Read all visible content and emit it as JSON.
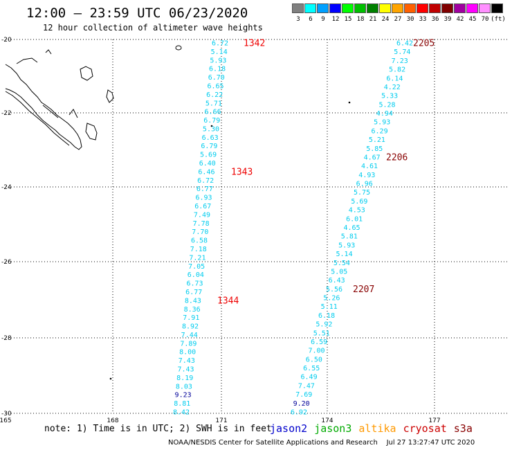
{
  "header": {
    "title": "12:00 – 23:59 UTC 06/23/2020",
    "subtitle": "12 hour collection of altimeter wave heights"
  },
  "legend": {
    "unit": "(ft)",
    "bins": [
      {
        "label": "3",
        "color": "#808080"
      },
      {
        "label": "6",
        "color": "#00ffff"
      },
      {
        "label": "9",
        "color": "#00a0ff"
      },
      {
        "label": "12",
        "color": "#0000ff"
      },
      {
        "label": "15",
        "color": "#00ff00"
      },
      {
        "label": "18",
        "color": "#00c000"
      },
      {
        "label": "21",
        "color": "#008000"
      },
      {
        "label": "24",
        "color": "#ffff00"
      },
      {
        "label": "27",
        "color": "#ffa500"
      },
      {
        "label": "30",
        "color": "#ff6000"
      },
      {
        "label": "33",
        "color": "#ff0000"
      },
      {
        "label": "36",
        "color": "#c00000"
      },
      {
        "label": "39",
        "color": "#800000"
      },
      {
        "label": "42",
        "color": "#a000a0"
      },
      {
        "label": "45",
        "color": "#ff00ff"
      },
      {
        "label": "70",
        "color": "#ff90ff"
      },
      {
        "label": "",
        "color": "#000000"
      }
    ]
  },
  "map": {
    "lat_labels": [
      "-20",
      "-22",
      "-24",
      "-26",
      "-28",
      "-30"
    ],
    "lon_labels": [
      "165",
      "168",
      "171",
      "174",
      "177"
    ],
    "colors": {
      "cyan": "#00ccee",
      "dark_blue": "#000099",
      "red_pass": "#ee0000",
      "dark_red_pass": "#880000"
    }
  },
  "tracks": [
    {
      "name": "west",
      "values": [
        "6.72",
        "5.14",
        "5.93",
        "6.18",
        "6.70",
        "6.65",
        "6.22",
        "5.71",
        "6.66",
        "6.79",
        "5.30",
        "6.63",
        "6.79",
        "5.69",
        "6.40",
        "6.46",
        "6.72",
        "6.77",
        "6.93",
        "6.67",
        "7.49",
        "7.78",
        "7.70",
        "6.58",
        "7.18",
        "7.21",
        "7.05",
        "6.04",
        "6.73",
        "6.77",
        "8.43",
        "8.36",
        "7.91",
        "8.92",
        "7.44",
        "7.89",
        "8.00",
        "7.43",
        "7.43",
        "8.19",
        "8.03",
        "9.23",
        "8.81",
        "8.42"
      ],
      "dark": [
        41
      ],
      "passes": [
        {
          "label": "1342",
          "index": 0
        },
        {
          "label": "1343",
          "index": 15
        },
        {
          "label": "1344",
          "index": 30
        }
      ]
    },
    {
      "name": "east",
      "values": [
        "6.42",
        "5.74",
        "7.23",
        "5.82",
        "6.14",
        "4.22",
        "5.33",
        "5.28",
        "4.94",
        "5.93",
        "6.29",
        "5.21",
        "5.85",
        "4.67",
        "4.61",
        "4.93",
        "6.96",
        "5.75",
        "5.69",
        "4.53",
        "6.01",
        "4.65",
        "5.81",
        "5.93",
        "5.14",
        "5.54",
        "5.05",
        "6.43",
        "5.56",
        "5.26",
        "5.11",
        "6.18",
        "5.92",
        "5.51",
        "6.59",
        "7.00",
        "6.50",
        "6.55",
        "6.49",
        "7.47",
        "7.69",
        "9.20",
        "6.92"
      ],
      "dark": [
        41
      ],
      "passes": [
        {
          "label": "2205",
          "index": 0
        },
        {
          "label": "2206",
          "index": 13
        },
        {
          "label": "2207",
          "index": 28
        }
      ]
    }
  ],
  "footer": {
    "note": "note: 1) Time is in UTC; 2) SWH is in feet",
    "satellites": [
      {
        "name": "jason2",
        "color": "#0000cc"
      },
      {
        "name": "jason3",
        "color": "#00aa00"
      },
      {
        "name": "altika",
        "color": "#ff9900"
      },
      {
        "name": "cryosat",
        "color": "#cc0000"
      },
      {
        "name": "s3a",
        "color": "#880000"
      }
    ],
    "credit": "NOAA/NESDIS Center for Satellite Applications and Research    Jul 27 13:27:47 UTC 2020"
  }
}
